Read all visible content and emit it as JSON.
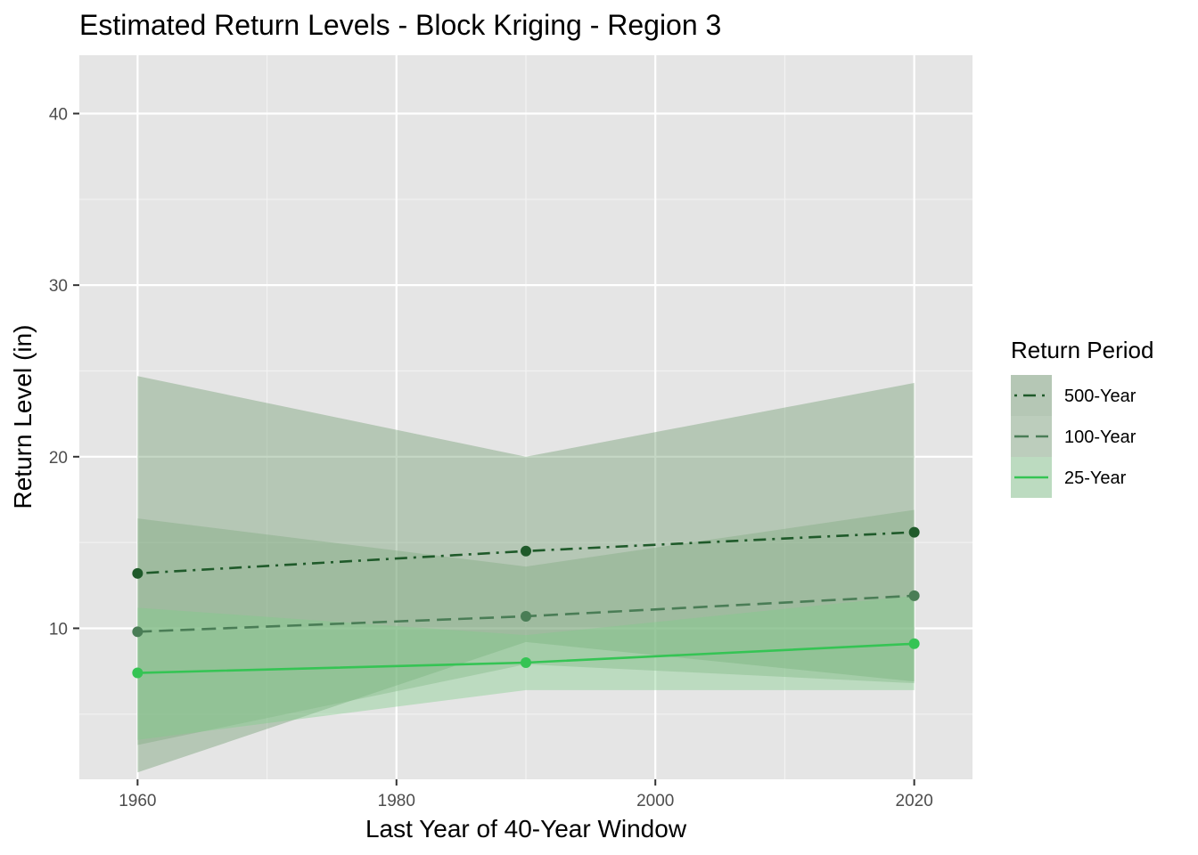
{
  "chart_data": {
    "type": "line",
    "title": "Estimated Return Levels - Block Kriging - Region 3",
    "xlabel": "Last Year of 40-Year Window",
    "ylabel": "Return Level (in)",
    "xlim": [
      1955.5,
      2024.5
    ],
    "ylim": [
      1.2,
      43.4
    ],
    "x_ticks": [
      1960,
      1980,
      2000,
      2020
    ],
    "x_tick_labels": [
      "1960",
      "1980",
      "2000",
      "2020"
    ],
    "y_ticks": [
      10,
      20,
      30,
      40
    ],
    "y_tick_labels": [
      "10",
      "20",
      "30",
      "40"
    ],
    "grid": true,
    "legend": {
      "title": "Return Period",
      "position": "right"
    },
    "x": [
      1960,
      1990,
      2020
    ],
    "series": [
      {
        "name": "500-Year",
        "values": [
          13.2,
          14.5,
          15.6
        ],
        "lower": [
          1.6,
          9.2,
          6.9
        ],
        "upper": [
          24.7,
          20.0,
          24.3
        ],
        "color": "#1f5a2a",
        "linetype": "dotdash",
        "band_color": "#6f9a6f"
      },
      {
        "name": "100-Year",
        "values": [
          9.8,
          10.7,
          11.9
        ],
        "lower": [
          3.2,
          7.9,
          6.8
        ],
        "upper": [
          16.4,
          13.6,
          16.9
        ],
        "color": "#4a7d56",
        "linetype": "dashed",
        "band_color": "#7faa7f"
      },
      {
        "name": "25-Year",
        "values": [
          7.4,
          8.0,
          9.1
        ],
        "lower": [
          3.5,
          6.4,
          6.4
        ],
        "upper": [
          11.2,
          9.6,
          11.9
        ],
        "color": "#35c454",
        "linetype": "solid",
        "band_color": "#7fcc8a"
      }
    ]
  },
  "colors": {
    "panel_background": "#e5e5e5",
    "grid_major": "#ffffff",
    "grid_minor": "#f2f2f2",
    "axis_text": "#4d4d4d"
  }
}
